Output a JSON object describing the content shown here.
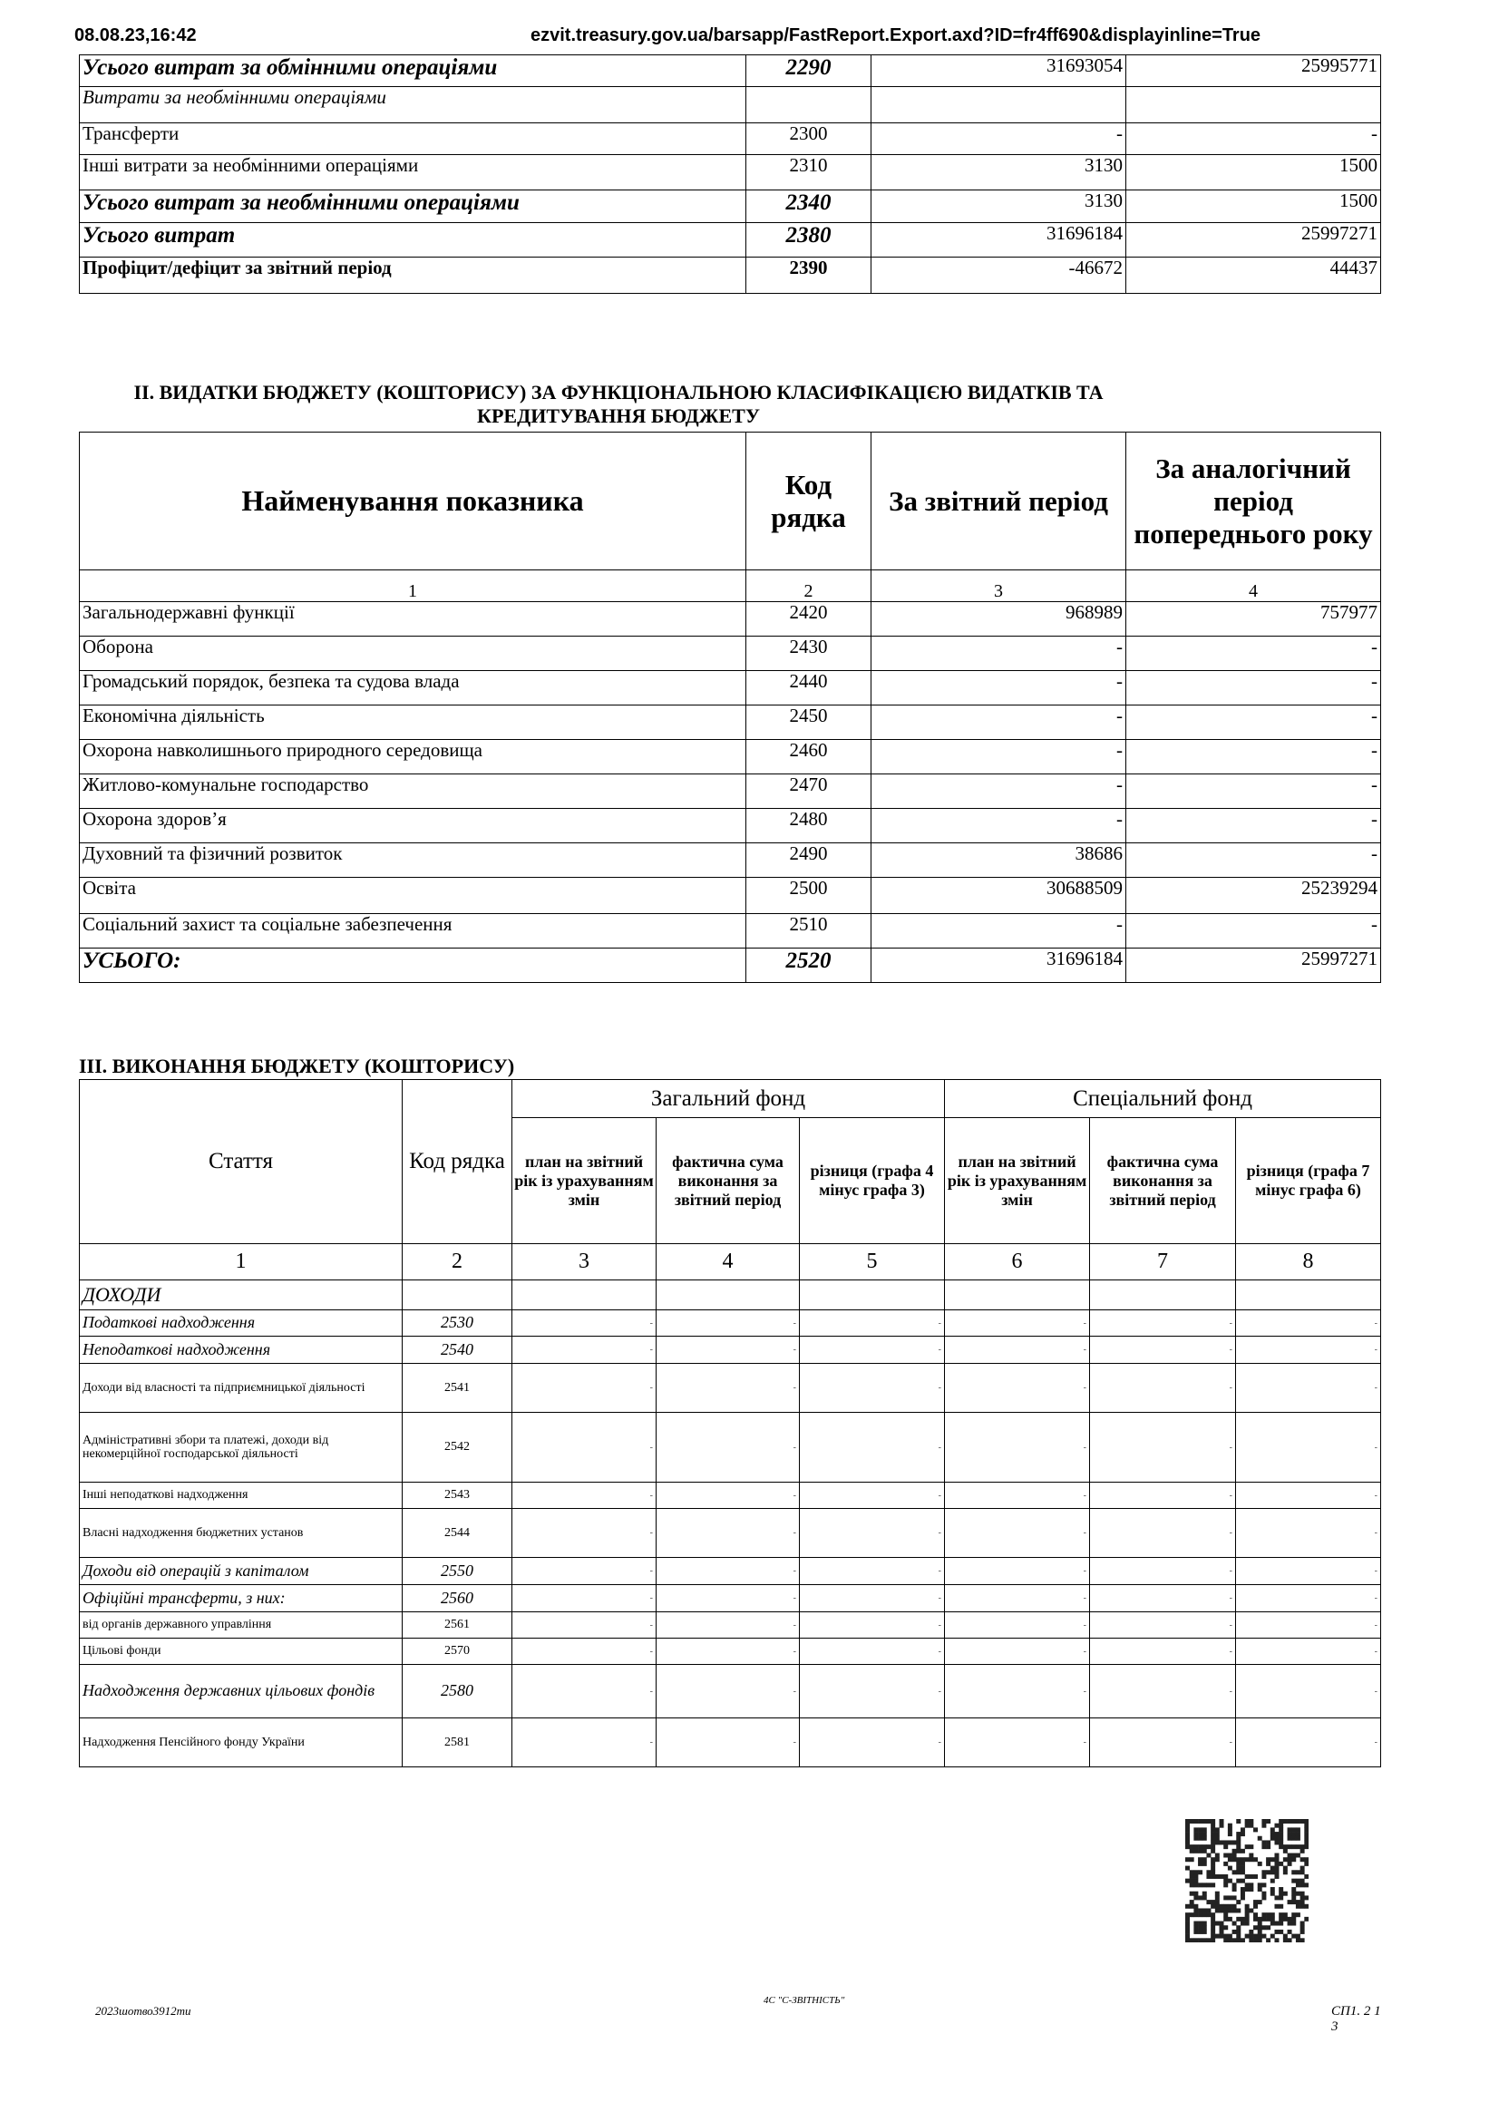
{
  "header": {
    "timestamp": "08.08.23,16:42",
    "url": "ezvit.treasury.gov.ua/barsapp/FastReport.Export.axd?ID=fr4ff690&displayinline=True"
  },
  "table1": {
    "rows": [
      [
        "Усього витрат за обмінними операціями",
        "2290",
        "31693054",
        "25995771"
      ],
      [
        "Витрати за необмінними операціями"
      ],
      [
        "Трансферти",
        "2300",
        "-",
        "-"
      ],
      [
        "Інші витрати за необмінними операціями",
        "2310",
        "3130",
        "1500"
      ],
      [
        "Усього витрат за необмінними операціями",
        "2340",
        "3130",
        "1500"
      ],
      [
        "Усього витрат",
        "2380",
        "31696184",
        "25997271"
      ],
      [
        "Профіцит/дефіцит за звітний період",
        "2390",
        "-46672",
        "44437"
      ]
    ]
  },
  "section2": {
    "title_line1": "II. ВИДАТКИ БЮДЖЕТУ (КОШТОРИСУ) ЗА ФУНКЦІОНАЛЬНОЮ КЛАСИФІКАЦІЄЮ ВИДАТКІВ ТА",
    "title_line2": "КРЕДИТУВАННЯ БЮДЖЕТУ",
    "columns": [
      "Найменування показника",
      "Код рядка",
      "За звітний період",
      "За аналогічний період попереднього року"
    ],
    "column_numbers": [
      "1",
      "2",
      "3",
      "4"
    ],
    "rows": [
      [
        "Загальнодержавні функції",
        "2420",
        "968989",
        "757977"
      ],
      [
        "Оборона",
        "2430",
        "-",
        "-"
      ],
      [
        "Громадський порядок, безпека та судова влада",
        "2440",
        "-",
        "-"
      ],
      [
        "Економічна діяльність",
        "2450",
        "-",
        "-"
      ],
      [
        "Охорона навколишнього природного середовища",
        "2460",
        "-",
        "-"
      ],
      [
        "Житлово-комунальне господарство",
        "2470",
        "-",
        "-"
      ],
      [
        "Охорона здоров’я",
        "2480",
        "-",
        "-"
      ],
      [
        "Духовний та фізичний розвиток",
        "2490",
        "38686",
        "-"
      ],
      [
        "Освіта",
        "2500",
        "30688509",
        "25239294"
      ],
      [
        "Соціальний захист та соціальне забезпечення",
        "2510",
        "-",
        "-"
      ],
      [
        "УСЬОГО:",
        "2520",
        "31696184",
        "25997271"
      ]
    ]
  },
  "section3": {
    "title": "III. ВИКОНАННЯ БЮДЖЕТУ (КОШТОРИСУ)",
    "columns": [
      "Стаття",
      "Код рядка"
    ],
    "funds": [
      "Загальний фонд",
      "Спеціальний фонд"
    ],
    "subcolumns": [
      "план на звітний рік із урахуванням змін",
      "фактична сума виконання за звітний період",
      "різниця (графа 4 мінус графа 3)",
      "план на звітний рік із урахуванням змін",
      "фактична сума виконання за звітний період",
      "різниця (графа 7 мінус графа 6)"
    ],
    "column_numbers": [
      "1",
      "2",
      "3",
      "4",
      "5",
      "6",
      "7",
      "8"
    ],
    "rows": [
      [
        "ДОХОДИ"
      ],
      [
        "Податкові надходження",
        "2530",
        "-",
        "-",
        "-",
        "-",
        "-",
        "-"
      ],
      [
        "Неподаткові надходження",
        "2540",
        "-",
        "-",
        "-",
        "-",
        "-",
        "-"
      ],
      [
        "Доходи від власності та підприємницької діяльності",
        "2541",
        "-",
        "-",
        "-",
        "-",
        "-",
        "-"
      ],
      [
        "Адміністративні збори та платежі, доходи від некомерційної господарської діяльності",
        "2542",
        "-",
        "-",
        "-",
        "-",
        "-",
        "-"
      ],
      [
        "Інші неподаткові надходження",
        "2543",
        "-",
        "-",
        "-",
        "-",
        "-",
        "-"
      ],
      [
        "Власні надходження бюджетних установ",
        "2544",
        "-",
        "-",
        "-",
        "-",
        "-",
        "-"
      ],
      [
        "Доходи від операцій з капіталом",
        "2550",
        "-",
        "-",
        "-",
        "-",
        "-",
        "-"
      ],
      [
        "Офіційні трансферти, з них:",
        "2560",
        "-",
        "-",
        "-",
        "-",
        "-",
        "-"
      ],
      [
        "від органів державного управління",
        "2561",
        "-",
        "-",
        "-",
        "-",
        "-",
        "-"
      ],
      [
        "Цільові фонди",
        "2570",
        "-",
        "-",
        "-",
        "-",
        "-",
        "-"
      ],
      [
        "Надходження державних цільових фондів",
        "2580",
        "-",
        "-",
        "-",
        "-",
        "-",
        "-"
      ],
      [
        "Надходження Пенсійного фонду України",
        "2581",
        "-",
        "-",
        "-",
        "-",
        "-",
        "-"
      ]
    ]
  },
  "footer": {
    "left": "2023шотво3912ти",
    "center": "4С \"С-ЗВІТНІСТЬ\"",
    "right": "СП1. 2 1 3"
  }
}
